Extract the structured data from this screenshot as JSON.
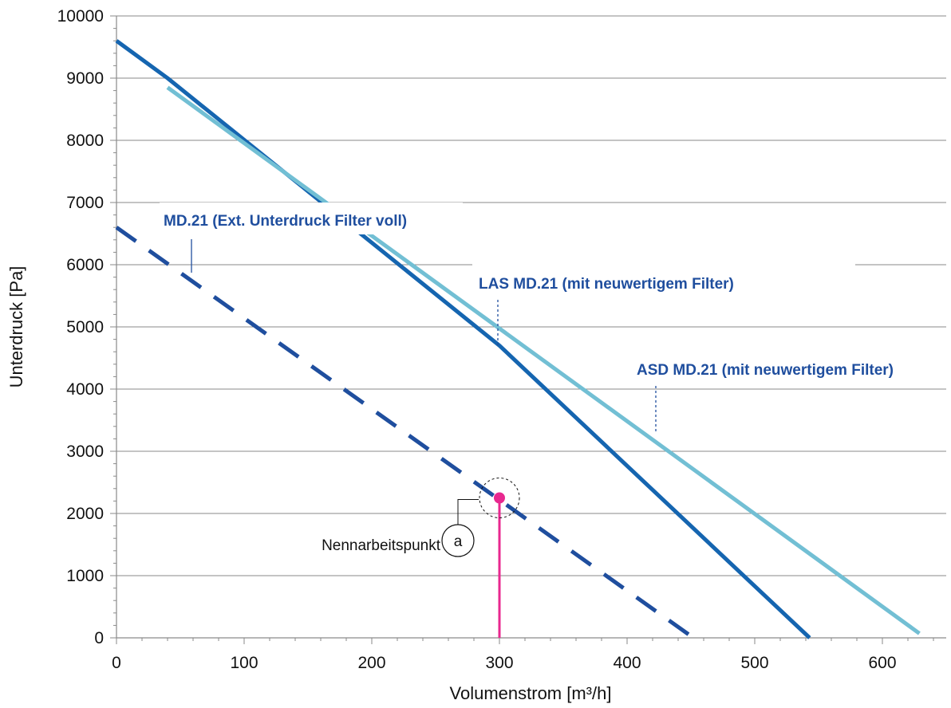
{
  "chart_data": {
    "type": "line",
    "title": "",
    "xlabel": "Volumenstrom [m³/h]",
    "ylabel": "Unterdruck [Pa]",
    "xlim": [
      0,
      650
    ],
    "ylim": [
      0,
      10000
    ],
    "xticks": [
      0,
      100,
      200,
      300,
      400,
      500,
      600
    ],
    "yticks": [
      0,
      1000,
      2000,
      3000,
      4000,
      5000,
      6000,
      7000,
      8000,
      9000,
      10000
    ],
    "grid": "horizontal",
    "series": [
      {
        "name": "MD.21 (Ext. Unterdruck Filter voll)",
        "style": "dashed",
        "color": "#1f4e9e",
        "x": [
          0,
          452
        ],
        "y": [
          6600,
          0
        ]
      },
      {
        "name": "LAS MD.21 (mit neuwertigem Filter)",
        "style": "solid",
        "color": "#1565b0",
        "x": [
          0,
          40,
          300,
          543
        ],
        "y": [
          9600,
          9000,
          4700,
          0
        ]
      },
      {
        "name": "ASD MD.21 (mit neuwertigem Filter)",
        "style": "solid",
        "color": "#72bfd4",
        "x": [
          40,
          629
        ],
        "y": [
          8850,
          70
        ]
      }
    ],
    "operating_point": {
      "label": "Nennarbeitspunkt",
      "marker": "a",
      "x": 300,
      "y": 2250,
      "color": "#e8288f"
    }
  }
}
